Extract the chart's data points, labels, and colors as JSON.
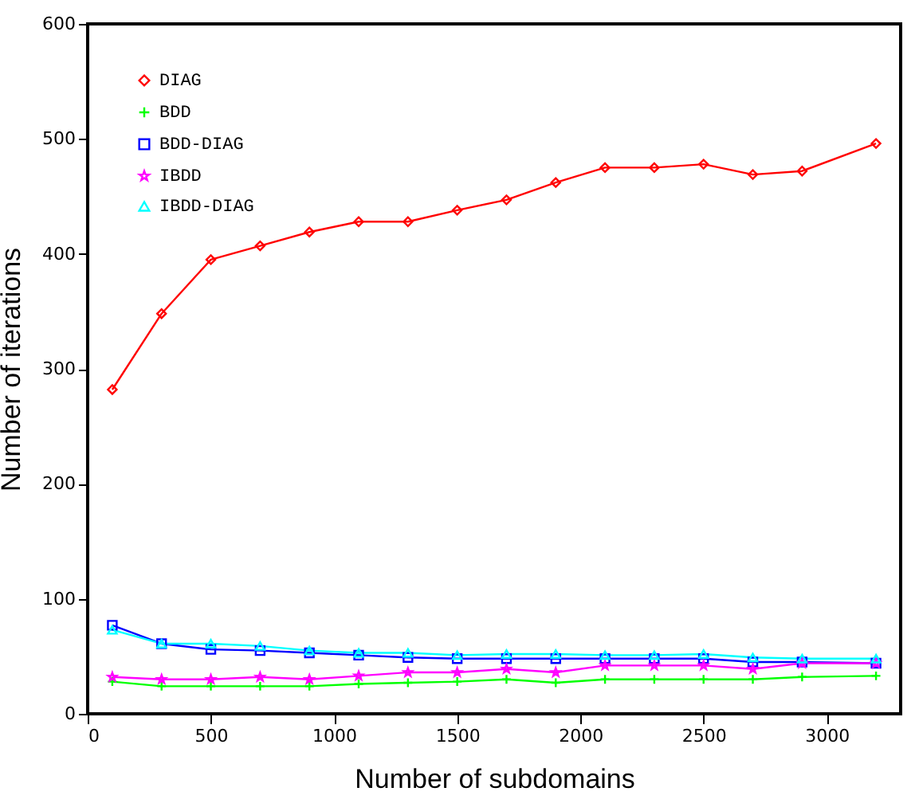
{
  "chart_data": {
    "type": "line",
    "xlabel": "Number of subdomains",
    "ylabel": "Number of iterations",
    "x": [
      100,
      300,
      500,
      700,
      900,
      1100,
      1300,
      1500,
      1700,
      1900,
      2100,
      2300,
      2500,
      2700,
      2900,
      3200
    ],
    "series": [
      {
        "name": "DIAG",
        "color": "#ff0000",
        "marker": "diamond",
        "values": [
          282,
          348,
          395,
          407,
          419,
          428,
          428,
          438,
          447,
          462,
          475,
          475,
          478,
          469,
          472,
          496
        ]
      },
      {
        "name": "BDD",
        "color": "#00ff00",
        "marker": "cross",
        "values": [
          28,
          24,
          24,
          24,
          24,
          26,
          27,
          28,
          30,
          27,
          30,
          30,
          30,
          30,
          32,
          33
        ]
      },
      {
        "name": "BDD-DIAG",
        "color": "#0000ff",
        "marker": "square",
        "values": [
          77,
          61,
          56,
          55,
          53,
          51,
          49,
          48,
          48,
          48,
          48,
          48,
          48,
          45,
          45,
          44
        ]
      },
      {
        "name": "IBDD",
        "color": "#ff00ff",
        "marker": "star",
        "values": [
          32,
          30,
          30,
          32,
          30,
          33,
          36,
          36,
          39,
          36,
          42,
          42,
          42,
          39,
          44,
          44
        ]
      },
      {
        "name": "IBDD-DIAG",
        "color": "#00ffff",
        "marker": "triangle",
        "values": [
          73,
          61,
          61,
          59,
          55,
          53,
          53,
          51,
          52,
          52,
          51,
          51,
          52,
          49,
          48,
          48
        ]
      }
    ],
    "xlim": [
      0,
      3300
    ],
    "xticks": [
      0,
      500,
      1000,
      1500,
      2000,
      2500,
      3000
    ],
    "ylim": [
      0,
      600
    ],
    "yticks": [
      0,
      100,
      200,
      300,
      400,
      500,
      600
    ],
    "grid": false,
    "legend": "top left",
    "line_style": "solid"
  }
}
